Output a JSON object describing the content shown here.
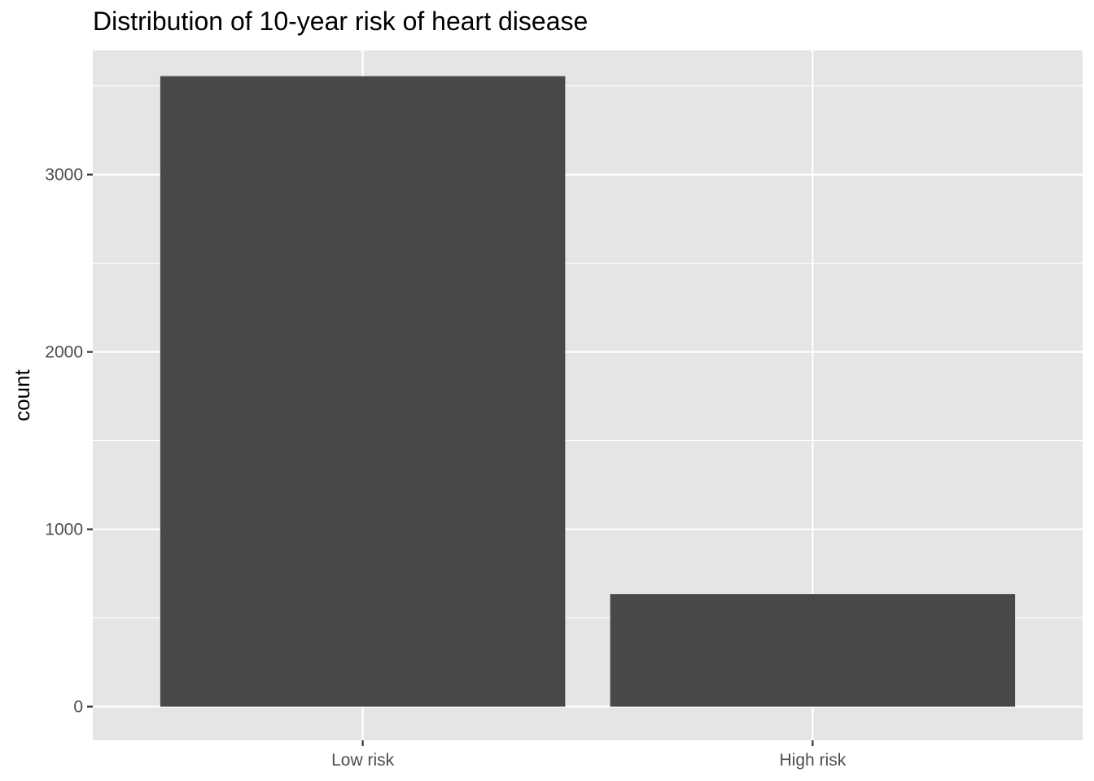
{
  "chart_data": {
    "type": "bar",
    "title": "Distribution of 10-year risk of heart disease",
    "xlabel": "",
    "ylabel": "count",
    "categories": [
      "Low risk",
      "High risk"
    ],
    "values": [
      3555,
      635
    ],
    "ylim": [
      -190,
      3700
    ],
    "yticks": [
      0,
      1000,
      2000,
      3000
    ],
    "ytick_labels": [
      "0",
      "1000",
      "2000",
      "3000"
    ],
    "grid": true,
    "legend": "none",
    "colors": {
      "panel_background": "#e5e5e5",
      "grid_line": "#ffffff",
      "bar_fill": "#484848",
      "tick_mark": "#333333",
      "tick_text": "#4d4d4d"
    }
  }
}
